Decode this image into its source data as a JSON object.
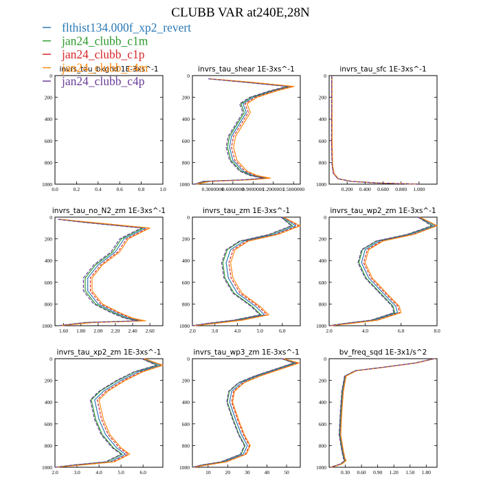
{
  "figure_title": "CLUBB VAR at240E,28N",
  "series_colors": [
    "#2a78b4",
    "#2c9a2c",
    "#d62728",
    "#ff8a12",
    "#6a3d9a"
  ],
  "legend": [
    {
      "label": "flthist134.000f_xp2_revert",
      "color": "#2a78b4"
    },
    {
      "label": "jan24_clubb_c1m",
      "color": "#2c9a2c"
    },
    {
      "label": "jan24_clubb_c1p",
      "color": "#d62728"
    },
    {
      "label": "jan24_clubb_c4m",
      "color": "#ff8a12"
    },
    {
      "label": "jan24_clubb_c4p",
      "color": "#6a3d9a"
    }
  ],
  "chart_data": [
    {
      "type": "line",
      "title": "invrs_tau_bkgnd",
      "units": "1E-3xs^-1",
      "xlim": [
        0.0,
        1.0
      ],
      "ylim": [
        1000,
        0
      ],
      "y_reversed": true,
      "xticks": [
        "0.0",
        "0.2",
        "0.4",
        "0.6",
        "0.8",
        "1.0"
      ],
      "yticks": [
        "0",
        "200",
        "400",
        "600",
        "800",
        "1000"
      ],
      "series": []
    },
    {
      "type": "line",
      "title": "invrs_tau_shear",
      "units": "1E-3xs^-1",
      "xlim": [
        0.0,
        1.6
      ],
      "ylim": [
        1000,
        0
      ],
      "y_reversed": true,
      "xticks": [
        "0.3000000",
        "0.6000000",
        "0.9000000",
        "1.2000001",
        "1.5000000"
      ],
      "xtick_values": [
        0.3,
        0.6,
        0.9,
        1.2,
        1.5
      ],
      "yticks": [
        "0",
        "200",
        "400",
        "600",
        "800",
        "1000"
      ],
      "profile": [
        [
          0.25,
          30
        ],
        [
          0.8,
          60
        ],
        [
          1.45,
          100
        ],
        [
          1.2,
          140
        ],
        [
          0.9,
          200
        ],
        [
          0.75,
          260
        ],
        [
          0.8,
          340
        ],
        [
          0.7,
          440
        ],
        [
          0.58,
          560
        ],
        [
          0.55,
          660
        ],
        [
          0.6,
          780
        ],
        [
          0.75,
          880
        ],
        [
          0.9,
          920
        ],
        [
          1.1,
          945
        ],
        [
          0.8,
          960
        ],
        [
          0.2,
          975
        ],
        [
          0.05,
          1000
        ]
      ],
      "shifts": [
        0,
        -0.03,
        0.03,
        0.06,
        -0.05
      ]
    },
    {
      "type": "line",
      "title": "invrs_tau_sfc",
      "units": "1E-3xs^-1",
      "xlim": [
        0.0,
        1.2
      ],
      "ylim": [
        1000,
        0
      ],
      "y_reversed": true,
      "xticks": [
        "0.200",
        "0.400",
        "0.600",
        "0.800",
        "1.000"
      ],
      "xtick_values": [
        0.2,
        0.4,
        0.6,
        0.8,
        1.0
      ],
      "yticks": [
        "0",
        "200",
        "400",
        "600",
        "800",
        "1000"
      ],
      "profile": [
        [
          0.03,
          0
        ],
        [
          0.03,
          600
        ],
        [
          0.035,
          820
        ],
        [
          0.05,
          900
        ],
        [
          0.1,
          950
        ],
        [
          0.25,
          975
        ],
        [
          0.55,
          990
        ],
        [
          1.0,
          1000
        ]
      ],
      "shifts": [
        0,
        0.002,
        -0.002,
        0.004,
        -0.004
      ]
    },
    {
      "type": "line",
      "title": "invrs_tau_no_N2_zm",
      "units": "1E-3xs^-1",
      "xlim": [
        1.5,
        2.75
      ],
      "ylim": [
        1000,
        0
      ],
      "y_reversed": true,
      "xticks": [
        "1.60",
        "1.80",
        "2.00",
        "2.20",
        "2.40",
        "2.60"
      ],
      "xtick_values": [
        1.6,
        1.8,
        2.0,
        2.2,
        2.4,
        2.6
      ],
      "yticks": [
        "0",
        "200",
        "400",
        "600",
        "800",
        "1000"
      ],
      "profile": [
        [
          1.55,
          20
        ],
        [
          1.9,
          50
        ],
        [
          2.55,
          100
        ],
        [
          2.45,
          140
        ],
        [
          2.3,
          200
        ],
        [
          2.25,
          260
        ],
        [
          2.2,
          320
        ],
        [
          2.0,
          440
        ],
        [
          1.88,
          560
        ],
        [
          1.88,
          680
        ],
        [
          2.0,
          800
        ],
        [
          2.2,
          880
        ],
        [
          2.35,
          930
        ],
        [
          2.5,
          955
        ],
        [
          1.9,
          970
        ],
        [
          1.55,
          1000
        ]
      ],
      "shifts": [
        0,
        -0.03,
        0.03,
        0.05,
        -0.05
      ]
    },
    {
      "type": "line",
      "title": "invrs_tau_zm",
      "units": "1E-3xs^-1",
      "xlim": [
        2.0,
        6.8
      ],
      "ylim": [
        1000,
        0
      ],
      "y_reversed": true,
      "xticks": [
        "2.0",
        "3.0",
        "4.0",
        "5.0",
        "6.0"
      ],
      "xtick_values": [
        2.0,
        3.0,
        4.0,
        5.0,
        6.0
      ],
      "yticks": [
        "0",
        "200",
        "400",
        "600",
        "800",
        "1000"
      ],
      "profile": [
        [
          6.0,
          0
        ],
        [
          6.6,
          80
        ],
        [
          5.6,
          160
        ],
        [
          4.3,
          220
        ],
        [
          3.7,
          300
        ],
        [
          3.5,
          420
        ],
        [
          3.6,
          560
        ],
        [
          4.0,
          700
        ],
        [
          4.8,
          820
        ],
        [
          5.2,
          900
        ],
        [
          4.0,
          950
        ],
        [
          2.8,
          980
        ],
        [
          2.0,
          1000
        ]
      ],
      "shifts": [
        0,
        -0.15,
        0.12,
        0.2,
        -0.2
      ]
    },
    {
      "type": "line",
      "title": "invrs_tau_wp2_zm",
      "units": "1E-3xs^-1",
      "xlim": [
        2.0,
        8.0
      ],
      "ylim": [
        1000,
        0
      ],
      "y_reversed": true,
      "xticks": [
        "2.0",
        "4.0",
        "6.0",
        "8.0"
      ],
      "xtick_values": [
        2.0,
        4.0,
        6.0,
        8.0
      ],
      "yticks": [
        "0",
        "200",
        "400",
        "600",
        "800",
        "1000"
      ],
      "profile": [
        [
          7.0,
          0
        ],
        [
          7.9,
          80
        ],
        [
          6.5,
          160
        ],
        [
          4.8,
          220
        ],
        [
          4.0,
          300
        ],
        [
          3.8,
          420
        ],
        [
          4.2,
          560
        ],
        [
          5.0,
          700
        ],
        [
          5.7,
          820
        ],
        [
          5.8,
          880
        ],
        [
          4.5,
          950
        ],
        [
          3.0,
          980
        ],
        [
          2.0,
          1000
        ]
      ],
      "shifts": [
        0,
        -0.15,
        0.12,
        0.2,
        -0.2
      ]
    },
    {
      "type": "line",
      "title": "invrs_tau_xp2_zm",
      "units": "1E-3xs^-1",
      "xlim": [
        2.0,
        6.9
      ],
      "ylim": [
        1000,
        0
      ],
      "y_reversed": true,
      "xticks": [
        "2.0",
        "3.0",
        "4.0",
        "5.0",
        "6.0"
      ],
      "xtick_values": [
        2.0,
        3.0,
        4.0,
        5.0,
        6.0
      ],
      "yticks": [
        "0",
        "200",
        "400",
        "600",
        "800",
        "1000"
      ],
      "profile": [
        [
          6.0,
          0
        ],
        [
          6.8,
          60
        ],
        [
          5.8,
          120
        ],
        [
          5.0,
          200
        ],
        [
          4.2,
          300
        ],
        [
          3.8,
          380
        ],
        [
          4.0,
          560
        ],
        [
          4.3,
          700
        ],
        [
          4.8,
          820
        ],
        [
          5.2,
          880
        ],
        [
          4.5,
          950
        ],
        [
          3.0,
          980
        ],
        [
          2.0,
          1000
        ]
      ],
      "shifts": [
        0,
        -0.15,
        0.12,
        0.2,
        -0.2
      ]
    },
    {
      "type": "line",
      "title": "invrs_tau_wp3_zm",
      "units": "1E-3xs^-1",
      "xlim": [
        2,
        57
      ],
      "ylim": [
        1000,
        0
      ],
      "y_reversed": true,
      "xticks": [
        "10",
        "20",
        "30",
        "40",
        "50"
      ],
      "xtick_values": [
        10,
        20,
        30,
        40,
        50
      ],
      "yticks": [
        "0",
        "200",
        "400",
        "600",
        "800",
        "1000"
      ],
      "profile": [
        [
          48,
          0
        ],
        [
          55,
          40
        ],
        [
          45,
          100
        ],
        [
          35,
          160
        ],
        [
          27,
          220
        ],
        [
          22,
          300
        ],
        [
          21,
          400
        ],
        [
          24,
          560
        ],
        [
          27,
          700
        ],
        [
          30,
          800
        ],
        [
          28,
          880
        ],
        [
          18,
          950
        ],
        [
          8,
          980
        ],
        [
          2,
          1000
        ]
      ],
      "shifts": [
        0,
        -1.2,
        1.0,
        1.5,
        -1.5
      ]
    },
    {
      "type": "line",
      "title": "bv_freq_sqd",
      "units": "1E-3x1/s^2",
      "xlim": [
        0.0,
        2.0
      ],
      "ylim": [
        1000,
        0
      ],
      "y_reversed": true,
      "xticks": [
        "0.30",
        "0.60",
        "0.90",
        "1.20",
        "1.50",
        "1.80"
      ],
      "xtick_values": [
        0.3,
        0.6,
        0.9,
        1.2,
        1.5,
        1.8
      ],
      "yticks": [
        "0",
        "200",
        "400",
        "600",
        "800",
        "1000"
      ],
      "profile": [
        [
          1.95,
          0
        ],
        [
          1.6,
          40
        ],
        [
          1.0,
          80
        ],
        [
          0.5,
          110
        ],
        [
          0.3,
          160
        ],
        [
          0.25,
          300
        ],
        [
          0.22,
          500
        ],
        [
          0.2,
          700
        ],
        [
          0.25,
          850
        ],
        [
          0.28,
          920
        ],
        [
          0.3,
          940
        ],
        [
          0.22,
          970
        ],
        [
          0.1,
          990
        ],
        [
          0.02,
          1000
        ]
      ],
      "shifts": [
        0,
        -0.01,
        0.01,
        0.015,
        -0.015
      ]
    }
  ]
}
